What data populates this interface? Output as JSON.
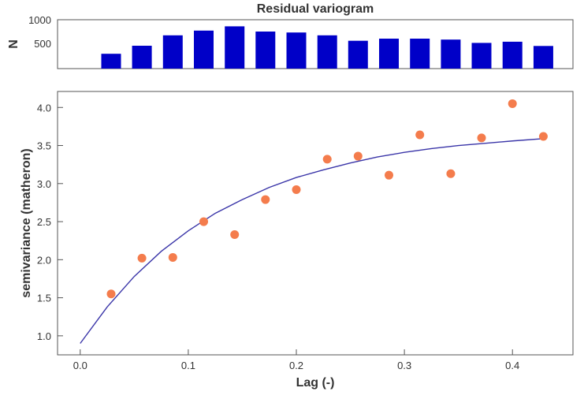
{
  "chart_data": [
    {
      "type": "bar",
      "title": "Residual variogram",
      "ylabel": "N",
      "xlabel": "",
      "x": [
        0.0286,
        0.0571,
        0.0857,
        0.1143,
        0.1429,
        0.1714,
        0.2,
        0.2286,
        0.2571,
        0.2857,
        0.3143,
        0.3429,
        0.3714,
        0.4,
        0.4286
      ],
      "values": [
        280,
        450,
        670,
        770,
        860,
        750,
        730,
        670,
        555,
        600,
        600,
        580,
        510,
        535,
        445
      ],
      "ylim": [
        0,
        1000
      ],
      "xlim": [
        -0.021,
        0.456
      ],
      "yticks": [
        "500",
        "1000"
      ],
      "bar_color": "#0000c8",
      "grid": false
    },
    {
      "type": "scatter",
      "title": "",
      "xlabel": "Lag (-)",
      "ylabel": "semivariance (matheron)",
      "x": [
        0.0286,
        0.0571,
        0.0857,
        0.1143,
        0.1429,
        0.1714,
        0.2,
        0.2286,
        0.2571,
        0.2857,
        0.3143,
        0.3429,
        0.3714,
        0.4,
        0.4286
      ],
      "y": [
        1.55,
        2.02,
        2.03,
        2.5,
        2.33,
        2.79,
        2.92,
        3.32,
        3.36,
        3.11,
        3.64,
        3.13,
        3.6,
        4.05,
        3.62
      ],
      "model_curve": {
        "x": [
          0,
          0.025,
          0.05,
          0.075,
          0.1,
          0.125,
          0.15,
          0.175,
          0.2,
          0.225,
          0.25,
          0.275,
          0.3,
          0.325,
          0.35,
          0.375,
          0.4,
          0.4286
        ],
        "y": [
          0.9,
          1.38,
          1.78,
          2.11,
          2.38,
          2.61,
          2.79,
          2.95,
          3.08,
          3.18,
          3.27,
          3.35,
          3.41,
          3.46,
          3.5,
          3.53,
          3.56,
          3.59
        ]
      },
      "xlim": [
        -0.021,
        0.456
      ],
      "ylim": [
        0.75,
        4.21
      ],
      "xticks": [
        "0.0",
        "0.1",
        "0.2",
        "0.3",
        "0.4"
      ],
      "yticks": [
        "1.0",
        "1.5",
        "2.0",
        "2.5",
        "3.0",
        "3.5",
        "4.0"
      ],
      "point_color": "#f47c4c",
      "line_color": "#3a35a8",
      "grid": false
    }
  ]
}
